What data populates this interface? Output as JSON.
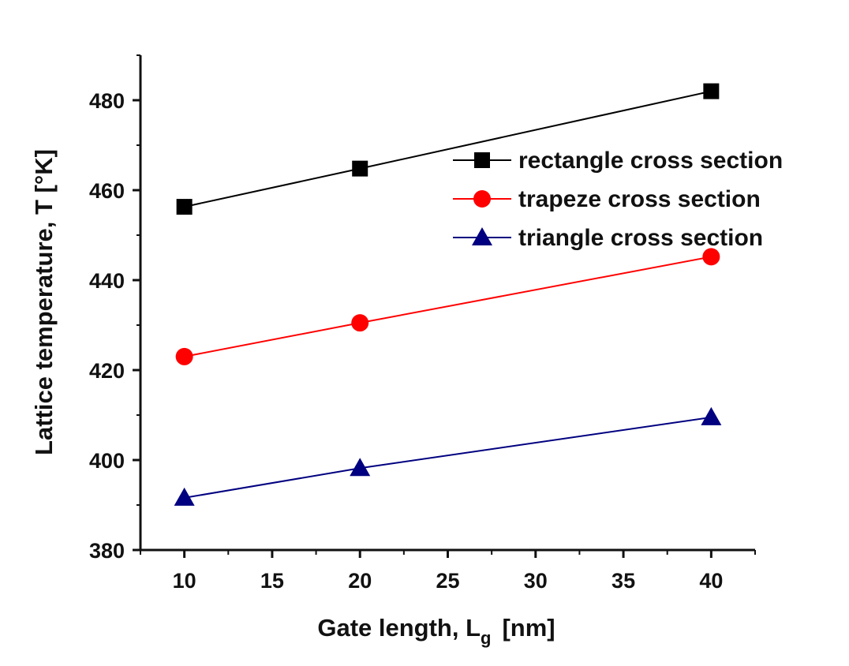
{
  "chart_data": {
    "type": "line",
    "title": "",
    "xlabel": {
      "main": "Gate length, L",
      "sub": "g",
      "unit": "[nm]"
    },
    "ylabel": "Lattice temperature, T [°K]",
    "xlim": [
      7.5,
      42.5
    ],
    "ylim": [
      380,
      490
    ],
    "x": [
      10,
      20,
      40
    ],
    "xticks": [
      10,
      15,
      20,
      25,
      30,
      35,
      40
    ],
    "yticks": [
      380,
      400,
      420,
      440,
      460,
      480
    ],
    "grid": false,
    "legend_position": "top-right",
    "series": [
      {
        "name": "rectangle cross section",
        "color": "#000000",
        "marker": "square",
        "values": [
          456.3,
          464.8,
          482.0
        ]
      },
      {
        "name": "trapeze cross section",
        "color": "#ff0000",
        "marker": "circle",
        "values": [
          423.0,
          430.5,
          445.2
        ]
      },
      {
        "name": "triangle cross section",
        "color": "#000080",
        "marker": "triangle",
        "values": [
          391.6,
          398.2,
          409.5
        ]
      }
    ]
  }
}
